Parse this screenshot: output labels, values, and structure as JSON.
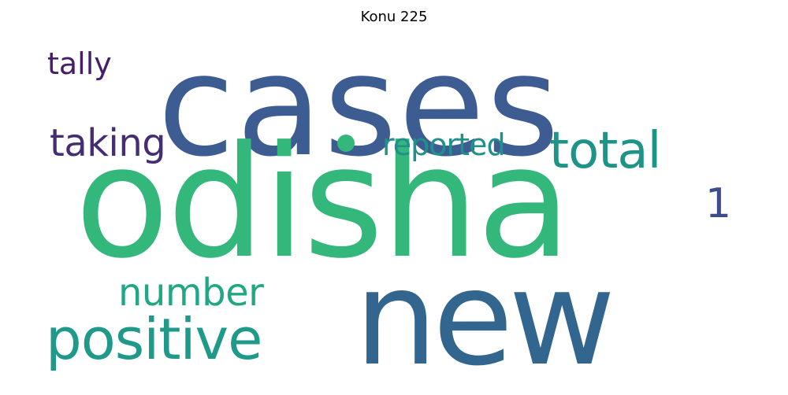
{
  "title": "Konu 225",
  "words": {
    "cases": {
      "text": "cases",
      "color": "#3d5c91"
    },
    "odisha": {
      "text": "odisha",
      "color": "#34b77a"
    },
    "new": {
      "text": "new",
      "color": "#33668f"
    },
    "positive": {
      "text": "positive",
      "color": "#1f9a8a"
    },
    "number": {
      "text": "number",
      "color": "#22a785"
    },
    "taking": {
      "text": "taking",
      "color": "#452d74"
    },
    "tally": {
      "text": "tally",
      "color": "#451e6a"
    },
    "total": {
      "text": "total",
      "color": "#1e9489"
    },
    "reported": {
      "text": "reported",
      "color": "#218f8c"
    },
    "one": {
      "text": "1",
      "color": "#3e4d89"
    }
  },
  "dot_color": "#34b77a"
}
